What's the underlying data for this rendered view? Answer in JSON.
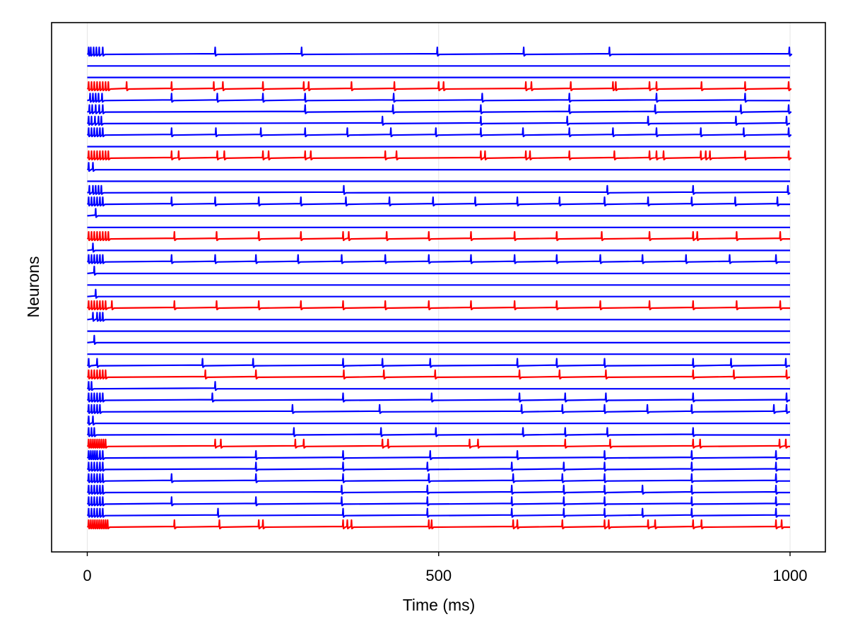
{
  "chart_data": {
    "type": "line",
    "xlabel": "Time (ms)",
    "ylabel": "Neurons",
    "xlim": [
      -100,
      1050
    ],
    "xticks": [
      0,
      500,
      1000
    ],
    "grid": true,
    "colors": {
      "excitatory": "#0000ff",
      "inhibitory": "#ff0000"
    },
    "series": [
      {
        "color": "blue",
        "spikes": [
          2,
          5,
          9,
          13,
          17,
          22,
          182,
          305,
          498,
          621,
          743,
          999
        ]
      },
      {
        "color": "blue",
        "spikes": []
      },
      {
        "color": "blue",
        "spikes": []
      },
      {
        "color": "red",
        "spikes": [
          2,
          6,
          10,
          14,
          18,
          22,
          26,
          30,
          56,
          120,
          180,
          193,
          250,
          308,
          315,
          376,
          437,
          500,
          507,
          624,
          632,
          688,
          748,
          752,
          800,
          810,
          874,
          936,
          998
        ]
      },
      {
        "color": "blue",
        "spikes": [
          4,
          8,
          12,
          16,
          21,
          120,
          185,
          250,
          310,
          436,
          562,
          686,
          810,
          936
        ]
      },
      {
        "color": "blue",
        "spikes": [
          3,
          7,
          12,
          17,
          22,
          310,
          435,
          560,
          686,
          808,
          930,
          998
        ]
      },
      {
        "color": "blue",
        "spikes": [
          2,
          6,
          11,
          16,
          20,
          420,
          560,
          683,
          798,
          923,
          995
        ]
      },
      {
        "color": "blue",
        "spikes": [
          2,
          6,
          10,
          14,
          18,
          22,
          120,
          183,
          247,
          310,
          370,
          432,
          496,
          560,
          620,
          686,
          748,
          810,
          873,
          934,
          998
        ]
      },
      {
        "color": "blue",
        "spikes": []
      },
      {
        "color": "red",
        "spikes": [
          2,
          6,
          10,
          14,
          18,
          22,
          26,
          30,
          120,
          130,
          185,
          195,
          250,
          258,
          310,
          318,
          424,
          440,
          560,
          566,
          624,
          630,
          686,
          750,
          800,
          810,
          820,
          873,
          880,
          886,
          936,
          998
        ]
      },
      {
        "color": "blue",
        "spikes": [
          2,
          8
        ]
      },
      {
        "color": "blue",
        "spikes": []
      },
      {
        "color": "blue",
        "spikes": [
          3,
          8,
          12,
          16,
          20,
          365,
          740,
          862,
          997
        ]
      },
      {
        "color": "blue",
        "spikes": [
          2,
          6,
          10,
          14,
          18,
          22,
          120,
          182,
          244,
          304,
          368,
          430,
          492,
          552,
          612,
          672,
          736,
          798,
          860,
          922,
          982
        ]
      },
      {
        "color": "blue",
        "spikes": [
          12
        ]
      },
      {
        "color": "blue",
        "spikes": []
      },
      {
        "color": "red",
        "spikes": [
          2,
          6,
          10,
          14,
          18,
          22,
          26,
          30,
          124,
          184,
          244,
          304,
          364,
          372,
          426,
          486,
          546,
          608,
          668,
          732,
          800,
          862,
          868,
          924,
          986
        ]
      },
      {
        "color": "blue",
        "spikes": [
          8
        ]
      },
      {
        "color": "blue",
        "spikes": [
          2,
          6,
          10,
          14,
          18,
          22,
          120,
          182,
          240,
          300,
          362,
          424,
          486,
          546,
          608,
          668,
          730,
          790,
          852,
          914,
          980
        ]
      },
      {
        "color": "blue",
        "spikes": [
          10
        ]
      },
      {
        "color": "blue",
        "spikes": []
      },
      {
        "color": "blue",
        "spikes": [
          12
        ]
      },
      {
        "color": "red",
        "spikes": [
          2,
          6,
          10,
          14,
          18,
          22,
          26,
          35,
          124,
          184,
          244,
          304,
          364,
          424,
          486,
          546,
          608,
          668,
          730,
          800,
          862,
          924,
          986
        ]
      },
      {
        "color": "blue",
        "spikes": [
          8,
          14,
          18,
          22
        ]
      },
      {
        "color": "blue",
        "spikes": []
      },
      {
        "color": "blue",
        "spikes": [
          10
        ]
      },
      {
        "color": "blue",
        "spikes": []
      },
      {
        "color": "blue",
        "spikes": [
          2,
          14,
          164,
          236,
          364,
          420,
          488,
          612,
          668,
          736,
          862,
          916,
          994
        ]
      },
      {
        "color": "red",
        "spikes": [
          2,
          6,
          10,
          14,
          18,
          22,
          26,
          168,
          240,
          365,
          422,
          495,
          615,
          672,
          738,
          862,
          920,
          995
        ]
      },
      {
        "color": "blue",
        "spikes": [
          2,
          6,
          182
        ]
      },
      {
        "color": "blue",
        "spikes": [
          2,
          6,
          10,
          14,
          18,
          22,
          178,
          364,
          490,
          615,
          680,
          738,
          862,
          995
        ]
      },
      {
        "color": "blue",
        "spikes": [
          2,
          6,
          10,
          14,
          18,
          292,
          416,
          618,
          676,
          736,
          797,
          860,
          977,
          995
        ]
      },
      {
        "color": "blue",
        "spikes": [
          2,
          8
        ]
      },
      {
        "color": "blue",
        "spikes": [
          2,
          6,
          10,
          294,
          418,
          496,
          620,
          680,
          740,
          862
        ]
      },
      {
        "color": "red",
        "spikes": [
          2,
          5,
          8,
          11,
          14,
          17,
          20,
          23,
          26,
          182,
          190,
          296,
          308,
          420,
          428,
          544,
          556,
          680,
          744,
          862,
          872,
          985,
          994
        ]
      },
      {
        "color": "blue",
        "spikes": [
          2,
          5,
          8,
          11,
          14,
          18,
          22,
          240,
          364,
          488,
          612,
          736,
          860,
          980
        ]
      },
      {
        "color": "blue",
        "spikes": [
          2,
          6,
          10,
          14,
          18,
          22,
          240,
          364,
          484,
          604,
          678,
          736,
          860,
          980
        ]
      },
      {
        "color": "blue",
        "spikes": [
          2,
          6,
          10,
          14,
          18,
          22,
          120,
          240,
          364,
          486,
          606,
          676,
          736,
          860,
          980
        ]
      },
      {
        "color": "blue",
        "spikes": [
          2,
          6,
          10,
          14,
          18,
          22,
          362,
          484,
          604,
          678,
          736,
          790,
          860,
          980
        ]
      },
      {
        "color": "blue",
        "spikes": [
          2,
          6,
          10,
          14,
          18,
          22,
          120,
          240,
          362,
          484,
          604,
          678,
          736,
          860,
          980
        ]
      },
      {
        "color": "blue",
        "spikes": [
          2,
          6,
          10,
          14,
          18,
          22,
          186,
          364,
          484,
          604,
          678,
          736,
          790,
          860,
          980
        ]
      },
      {
        "color": "red",
        "spikes": [
          2,
          5,
          8,
          11,
          14,
          17,
          20,
          23,
          26,
          29,
          124,
          188,
          244,
          250,
          364,
          370,
          376,
          486,
          490,
          606,
          612,
          676,
          736,
          742,
          798,
          808,
          862,
          874,
          980,
          988
        ]
      }
    ]
  }
}
